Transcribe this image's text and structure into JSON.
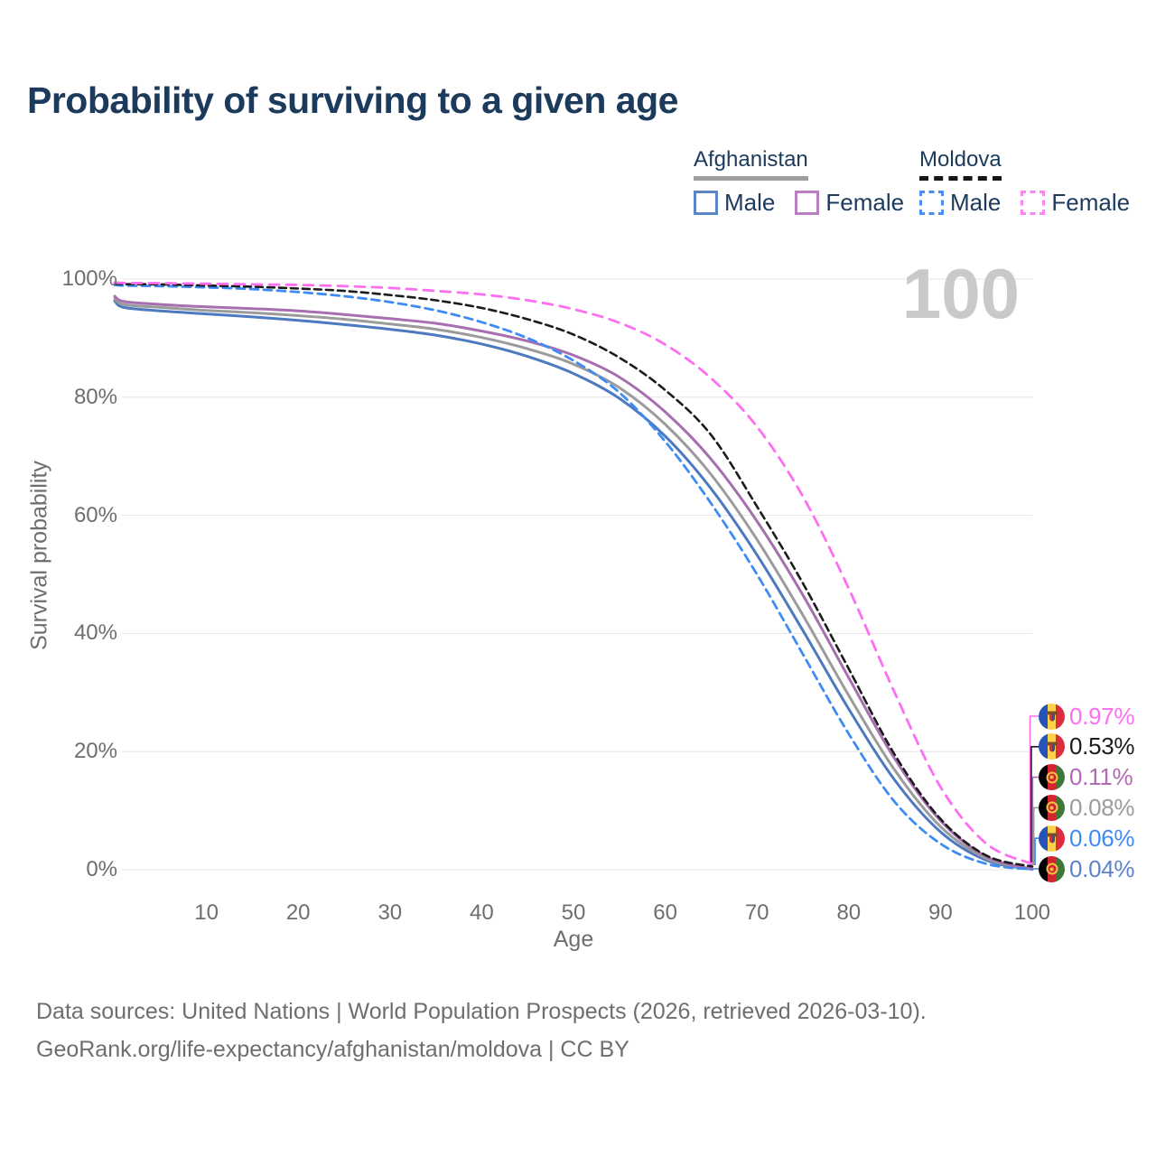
{
  "title": "Probability of surviving to a given age",
  "watermark": "100",
  "legend": {
    "groups": [
      {
        "name": "Afghanistan",
        "underline_style": "solid",
        "underline_color": "#9e9e9e",
        "items": [
          {
            "label": "Male",
            "box_color": "#5b84c4",
            "box_style": "solid"
          },
          {
            "label": "Female",
            "box_color": "#ba7fbe",
            "box_style": "solid"
          }
        ]
      },
      {
        "name": "Moldova",
        "underline_style": "dashed",
        "underline_color": "#161616",
        "items": [
          {
            "label": "Male",
            "box_color": "#4a8ef5",
            "box_style": "dashed"
          },
          {
            "label": "Female",
            "box_color": "#fb86ef",
            "box_style": "dashed"
          }
        ]
      }
    ]
  },
  "chart_data": {
    "type": "line",
    "title": "Probability of surviving to a given age",
    "xlabel": "Age",
    "ylabel": "Survival probability",
    "xlim": [
      0,
      100
    ],
    "ylim": [
      0,
      100
    ],
    "grid": "horizontal-only",
    "legend_position": "top-right",
    "hover_value_indicator": "100",
    "x_ticks": [
      10,
      20,
      30,
      40,
      50,
      60,
      70,
      80,
      90,
      100
    ],
    "y_ticks": [
      {
        "value": 0,
        "label": "0%"
      },
      {
        "value": 20,
        "label": "20%"
      },
      {
        "value": 40,
        "label": "40%"
      },
      {
        "value": 60,
        "label": "60%"
      },
      {
        "value": 80,
        "label": "80%"
      },
      {
        "value": 100,
        "label": "100%"
      }
    ],
    "ages": [
      0,
      1,
      5,
      10,
      15,
      20,
      25,
      30,
      35,
      40,
      45,
      50,
      55,
      60,
      65,
      70,
      75,
      80,
      85,
      90,
      95,
      100
    ],
    "series": [
      {
        "name": "Afghanistan Male",
        "country": "Afghanistan",
        "sex": "Male",
        "color": "#4d79c0",
        "dash": null,
        "width": 3,
        "values": [
          96.3,
          95.2,
          94.6,
          94.1,
          93.6,
          93.0,
          92.3,
          91.5,
          90.5,
          89.0,
          86.9,
          84.0,
          79.8,
          73.4,
          64.5,
          53.3,
          40.5,
          27.2,
          15.2,
          6.4,
          1.6,
          0.04
        ]
      },
      {
        "name": "Afghanistan",
        "country": "Afghanistan",
        "sex": "Both",
        "color": "#9b9b9b",
        "dash": null,
        "width": 3,
        "values": [
          96.7,
          95.7,
          95.2,
          94.7,
          94.3,
          93.8,
          93.2,
          92.4,
          91.5,
          90.1,
          88.2,
          85.6,
          81.6,
          75.4,
          66.9,
          55.9,
          43.1,
          29.5,
          16.9,
          7.3,
          1.9,
          0.08
        ]
      },
      {
        "name": "Afghanistan Female",
        "country": "Afghanistan",
        "sex": "Female",
        "color": "#a76fb0",
        "dash": null,
        "width": 3,
        "values": [
          97.1,
          96.2,
          95.7,
          95.3,
          95.0,
          94.6,
          94.0,
          93.3,
          92.5,
          91.2,
          89.5,
          87.1,
          83.4,
          77.5,
          69.5,
          59.0,
          46.5,
          32.5,
          18.8,
          8.3,
          2.2,
          0.11
        ]
      },
      {
        "name": "Moldova Male",
        "country": "Moldova",
        "sex": "Male",
        "color": "#3e8cf3",
        "dash": "9 6",
        "width": 2.8,
        "values": [
          99.0,
          98.9,
          98.8,
          98.6,
          98.3,
          97.8,
          97.1,
          96.1,
          94.7,
          92.7,
          90.0,
          86.2,
          80.8,
          72.5,
          62.0,
          50.0,
          36.5,
          23.0,
          11.5,
          4.4,
          1.0,
          0.06
        ]
      },
      {
        "name": "Moldova",
        "country": "Moldova",
        "sex": "Both",
        "color": "#1c1c1c",
        "dash": "8 5",
        "width": 2.6,
        "values": [
          99.2,
          99.15,
          99.1,
          98.9,
          98.7,
          98.4,
          98.0,
          97.3,
          96.4,
          95.1,
          93.2,
          90.6,
          86.7,
          81.2,
          73.6,
          61.5,
          48.5,
          34.0,
          19.5,
          8.6,
          2.4,
          0.53
        ]
      },
      {
        "name": "Moldova Female",
        "country": "Moldova",
        "sex": "Female",
        "color": "#fd6ef1",
        "dash": "11 8",
        "width": 2.8,
        "values": [
          99.4,
          99.35,
          99.3,
          99.2,
          99.1,
          99.0,
          98.8,
          98.5,
          98.0,
          97.4,
          96.4,
          94.9,
          92.6,
          88.9,
          83.2,
          75.0,
          63.2,
          47.6,
          30.0,
          14.0,
          4.4,
          0.97
        ]
      }
    ],
    "end_labels": [
      {
        "value": "0.97%",
        "color": "#fd6ef1",
        "flag": "moldova",
        "series": "Moldova Female"
      },
      {
        "value": "0.53%",
        "color": "#1c1c1c",
        "flag": "moldova",
        "series": "Moldova"
      },
      {
        "value": "0.11%",
        "color": "#b36ab4",
        "flag": "afghanistan",
        "series": "Afghanistan Female"
      },
      {
        "value": "0.08%",
        "color": "#9b9b9b",
        "flag": "afghanistan",
        "series": "Afghanistan"
      },
      {
        "value": "0.06%",
        "color": "#3e8cf3",
        "flag": "moldova",
        "series": "Moldova Male"
      },
      {
        "value": "0.04%",
        "color": "#5c83ca",
        "flag": "afghanistan",
        "series": "Afghanistan Male"
      }
    ]
  },
  "flags": {
    "moldova": {
      "bands": [
        "#2653b8",
        "#fcd24b",
        "#dd2c3e"
      ],
      "emblem": "moldova-eagle"
    },
    "afghanistan": {
      "bands": [
        "#000000",
        "#d32432",
        "#3d7638"
      ],
      "emblem": "afghan-seal"
    }
  },
  "y_axis": {
    "label": "Survival probability"
  },
  "x_axis": {
    "label": "Age"
  },
  "footer": {
    "line1": "Data sources: United Nations | World Population Prospects (2026, retrieved 2026-03-10).",
    "line2": "GeoRank.org/life-expectancy/afghanistan/moldova | CC BY"
  }
}
